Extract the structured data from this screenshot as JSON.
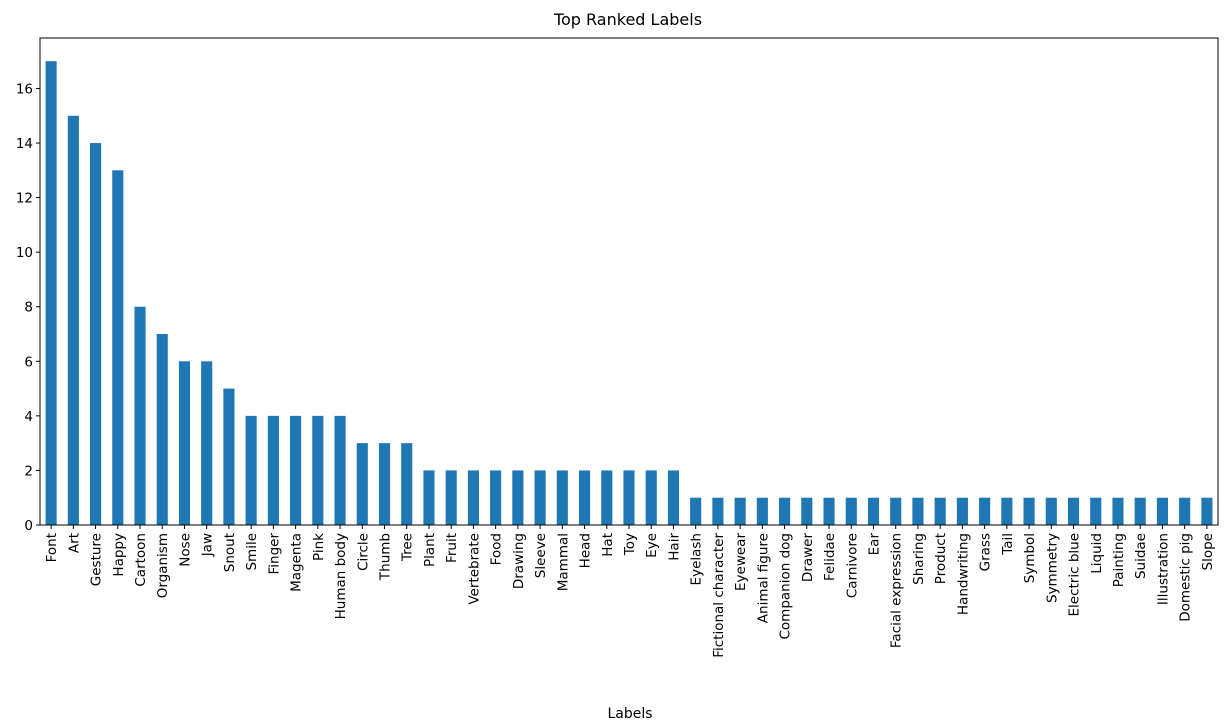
{
  "chart_data": {
    "type": "bar",
    "title": "Top Ranked Labels",
    "xlabel": "Labels",
    "ylabel": "",
    "ylim": [
      0,
      17.85
    ],
    "yticks": [
      0,
      2,
      4,
      6,
      8,
      10,
      12,
      14,
      16
    ],
    "grid": false,
    "legend": "none",
    "bar_color": "#1f77b4",
    "categories": [
      "Font",
      "Art",
      "Gesture",
      "Happy",
      "Cartoon",
      "Organism",
      "Nose",
      "Jaw",
      "Snout",
      "Smile",
      "Finger",
      "Magenta",
      "Pink",
      "Human body",
      "Circle",
      "Thumb",
      "Tree",
      "Plant",
      "Fruit",
      "Vertebrate",
      "Food",
      "Drawing",
      "Sleeve",
      "Mammal",
      "Head",
      "Hat",
      "Toy",
      "Eye",
      "Hair",
      "Eyelash",
      "Fictional character",
      "Eyewear",
      "Animal figure",
      "Companion dog",
      "Drawer",
      "Felidae",
      "Carnivore",
      "Ear",
      "Facial expression",
      "Sharing",
      "Product",
      "Handwriting",
      "Grass",
      "Tail",
      "Symbol",
      "Symmetry",
      "Electric blue",
      "Liquid",
      "Painting",
      "Suidae",
      "Illustration",
      "Domestic pig",
      "Slope"
    ],
    "values": [
      17,
      15,
      14,
      13,
      8,
      7,
      6,
      6,
      5,
      4,
      4,
      4,
      4,
      4,
      3,
      3,
      3,
      2,
      2,
      2,
      2,
      2,
      2,
      2,
      2,
      2,
      2,
      2,
      2,
      1,
      1,
      1,
      1,
      1,
      1,
      1,
      1,
      1,
      1,
      1,
      1,
      1,
      1,
      1,
      1,
      1,
      1,
      1,
      1,
      1,
      1,
      1,
      1
    ]
  }
}
